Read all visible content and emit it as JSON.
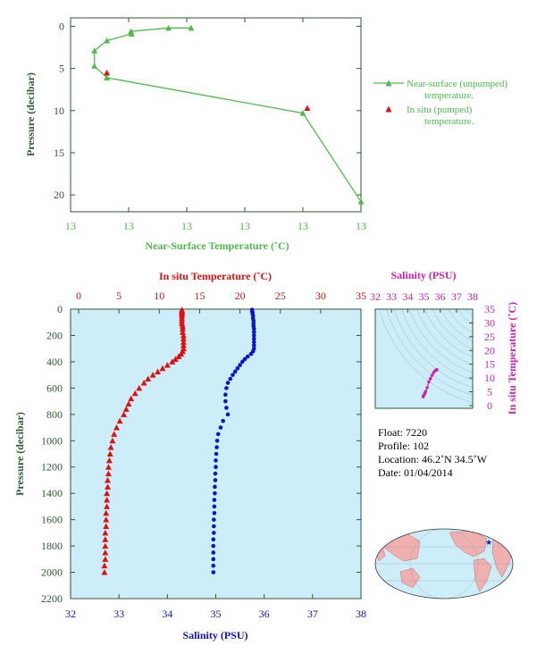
{
  "top_panel": {
    "ylabel": "Pressure (decibar)",
    "xlabel": "Near-Surface Temperature (˚C)",
    "legend": {
      "near_surface_line1": "Near-surface (unpumped)",
      "near_surface_line2": "temperature.",
      "in_situ_line1": "In situ (pumped)",
      "in_situ_line2": "temperature."
    }
  },
  "bottom_panel": {
    "top_axis_label": "In situ Temperature (˚C)",
    "bottom_axis_label": "Salinity (PSU)",
    "ylabel": "Pressure (decibar)"
  },
  "ts_panel": {
    "top_axis_label": "Salinity (PSU)",
    "right_axis_label": "In situ Temperature (˚C)"
  },
  "info": {
    "float": "Float:  7220",
    "profile": "Profile:  102",
    "location": "Location:  46.2˚N  34.5˚W",
    "date": "Date:  01/04/2014"
  },
  "colors": {
    "axis": "#2e5a2e",
    "near_surface": "#4cbb4c",
    "in_situ": "#dd1111",
    "salinity": "#1111cc",
    "ts": "#cc22aa",
    "panel_bg": "#cdeef8"
  },
  "chart_data": [
    {
      "type": "line",
      "name": "near-surface",
      "ylabel": "Pressure (decibar)",
      "xlabel": "Near-Surface Temperature (˚C)",
      "x_tick_labels": [
        "13",
        "13",
        "13",
        "13",
        "13",
        "13"
      ],
      "y_ticks": [
        0,
        5,
        10,
        15,
        20
      ],
      "xlim": [
        12.6,
        13.6
      ],
      "ylim": [
        22,
        -1
      ],
      "series": [
        {
          "name": "Near-surface (unpumped) temperature.",
          "marker": "triangle",
          "x": [
            13.015,
            12.937,
            12.808,
            12.81,
            12.725,
            12.682,
            12.682,
            12.725,
            13.4,
            13.6
          ],
          "y": [
            0.2,
            0.2,
            0.6,
            0.9,
            1.7,
            2.9,
            4.7,
            6.1,
            10.3,
            20.8
          ]
        },
        {
          "name": "In situ (pumped) temperature.",
          "marker": "triangle",
          "x": [
            12.725,
            13.415
          ],
          "y": [
            5.5,
            9.7
          ]
        }
      ]
    },
    {
      "type": "scatter",
      "name": "profile",
      "ylabel": "Pressure (decibar)",
      "top_xlabel": "In situ Temperature (˚C)",
      "bottom_xlabel": "Salinity (PSU)",
      "temp_ticks": [
        0,
        5,
        10,
        15,
        20,
        25,
        30,
        35
      ],
      "sal_ticks": [
        32,
        33,
        34,
        35,
        36,
        37,
        38
      ],
      "p_ticks": [
        0,
        200,
        400,
        600,
        800,
        1000,
        1200,
        1400,
        1600,
        1800,
        2000,
        2200
      ],
      "temp_lim": [
        -1,
        35
      ],
      "sal_lim": [
        32,
        38
      ],
      "ylim": [
        2200,
        0
      ],
      "series": [
        {
          "name": "In situ Temperature (˚C)",
          "pressure": [
            5,
            15,
            25,
            35,
            50,
            70,
            90,
            110,
            130,
            150,
            175,
            200,
            225,
            250,
            275,
            300,
            320,
            340,
            360,
            380,
            400,
            425,
            450,
            475,
            500,
            530,
            560,
            600,
            640,
            680,
            720,
            760,
            800,
            850,
            900,
            950,
            1000,
            1050,
            1100,
            1150,
            1200,
            1250,
            1300,
            1350,
            1400,
            1450,
            1500,
            1550,
            1600,
            1650,
            1700,
            1750,
            1800,
            1850,
            1900,
            1950,
            2000
          ],
          "temperature": [
            12.8,
            12.8,
            12.8,
            12.8,
            12.8,
            12.8,
            12.8,
            12.8,
            12.9,
            12.9,
            12.9,
            13.0,
            13.0,
            13.0,
            13.0,
            13.0,
            12.9,
            12.7,
            12.4,
            12.0,
            11.6,
            11.0,
            10.4,
            9.8,
            9.2,
            8.6,
            8.1,
            7.5,
            7.0,
            6.5,
            6.2,
            5.9,
            5.6,
            5.1,
            4.7,
            4.4,
            4.2,
            4.0,
            3.9,
            3.8,
            3.7,
            3.7,
            3.6,
            3.6,
            3.5,
            3.5,
            3.5,
            3.4,
            3.4,
            3.4,
            3.3,
            3.3,
            3.3,
            3.3,
            3.3,
            3.2,
            3.2
          ]
        },
        {
          "name": "Salinity (PSU)",
          "pressure": [
            5,
            15,
            25,
            35,
            50,
            70,
            90,
            110,
            130,
            150,
            175,
            200,
            225,
            250,
            275,
            300,
            320,
            340,
            360,
            380,
            400,
            425,
            450,
            475,
            500,
            530,
            560,
            600,
            650,
            700,
            750,
            800,
            850,
            900,
            950,
            1000,
            1050,
            1100,
            1150,
            1200,
            1250,
            1300,
            1350,
            1400,
            1450,
            1500,
            1550,
            1600,
            1650,
            1700,
            1750,
            1800,
            1850,
            1900,
            1950,
            2000
          ],
          "salinity": [
            35.75,
            35.75,
            35.76,
            35.76,
            35.77,
            35.77,
            35.78,
            35.78,
            35.78,
            35.79,
            35.79,
            35.79,
            35.79,
            35.79,
            35.79,
            35.79,
            35.77,
            35.73,
            35.66,
            35.6,
            35.55,
            35.5,
            35.45,
            35.4,
            35.35,
            35.3,
            35.25,
            35.22,
            35.2,
            35.2,
            35.22,
            35.25,
            35.15,
            35.1,
            35.05,
            35.03,
            35.02,
            35.01,
            35.0,
            35.0,
            34.99,
            34.99,
            34.98,
            34.98,
            34.97,
            34.97,
            34.97,
            34.96,
            34.96,
            34.96,
            34.95,
            34.95,
            34.95,
            34.95,
            34.95,
            34.95
          ]
        }
      ]
    },
    {
      "type": "scatter",
      "name": "t-s-diagram",
      "top_xlabel": "Salinity (PSU)",
      "right_ylabel": "In situ Temperature (˚C)",
      "sal_ticks": [
        32,
        33,
        34,
        35,
        36,
        37,
        38
      ],
      "temp_ticks": [
        0,
        5,
        10,
        15,
        20,
        25,
        30,
        35
      ],
      "sal_lim": [
        32,
        38
      ],
      "temp_lim": [
        -1,
        35
      ],
      "series": [
        {
          "name": "T-S",
          "salinity": [
            34.95,
            34.97,
            35.0,
            35.05,
            35.1,
            35.2,
            35.3,
            35.4,
            35.5,
            35.6,
            35.7,
            35.75,
            35.79
          ],
          "temperature": [
            3.2,
            3.5,
            3.8,
            4.4,
            5.1,
            6.5,
            8.6,
            9.8,
            11.0,
            12.0,
            12.7,
            12.8,
            13.0
          ]
        }
      ]
    },
    {
      "type": "map",
      "name": "float-location-map",
      "lat": 46.2,
      "lon": -34.5
    }
  ]
}
